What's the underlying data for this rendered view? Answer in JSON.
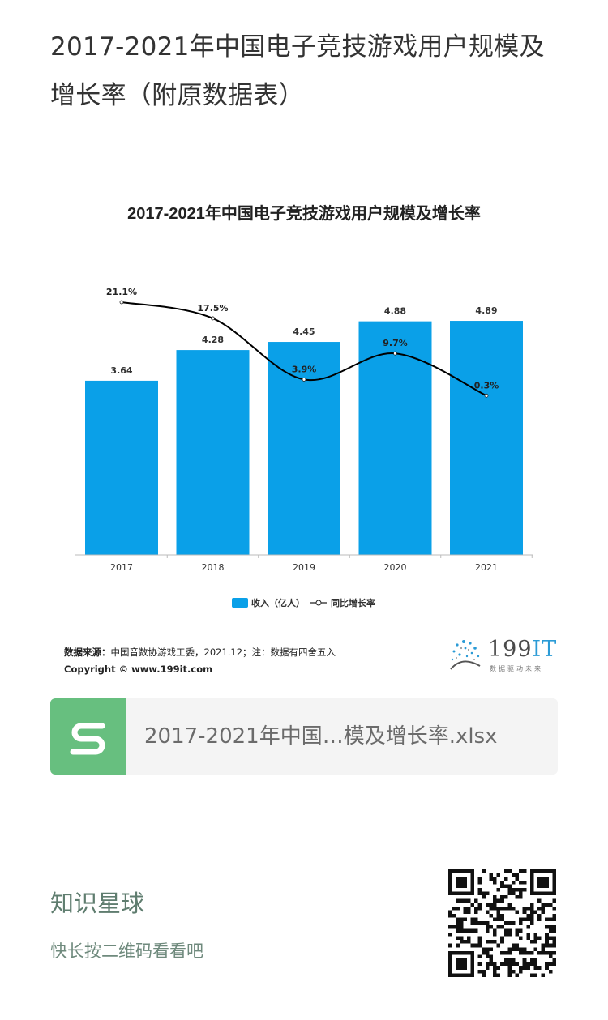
{
  "page": {
    "title": "2017-2021年中国电子竞技游戏用户规模及增长率（附原数据表）"
  },
  "chart_data": {
    "type": "bar",
    "title": "2017-2021年中国电子竞技游戏用户规模及增长率",
    "categories": [
      "2017",
      "2018",
      "2019",
      "2020",
      "2021"
    ],
    "series": [
      {
        "name": "收入（亿人）",
        "type": "bar",
        "values": [
          3.64,
          4.28,
          4.45,
          4.88,
          4.89
        ],
        "labels": [
          "3.64",
          "4.28",
          "4.45",
          "4.88",
          "4.89"
        ],
        "color": "#0aa0e8"
      },
      {
        "name": "同比增长率",
        "type": "line",
        "values": [
          21.1,
          17.5,
          3.9,
          9.7,
          0.3
        ],
        "labels": [
          "21.1%",
          "17.5%",
          "3.9%",
          "9.7%",
          "0.3%"
        ],
        "color": "#000000"
      }
    ],
    "legend_position": "bottom",
    "grid": false
  },
  "source": {
    "label": "数据来源：",
    "text": "中国音数协游戏工委，2021.12；注：数据有四舍五入",
    "copyright": "Copyright © www.199it.com"
  },
  "logo": {
    "digits": "199",
    "it": "IT",
    "tagline": "数据驱动未来"
  },
  "file_card": {
    "filename": "2017-2021年中国…模及增长率.xlsx",
    "icon": "spreadsheet-s-icon",
    "color": "#67bf7f"
  },
  "planet": {
    "title": "知识星球",
    "subtitle": "快长按二维码看看吧"
  },
  "qr_icon": "qr-code-icon"
}
